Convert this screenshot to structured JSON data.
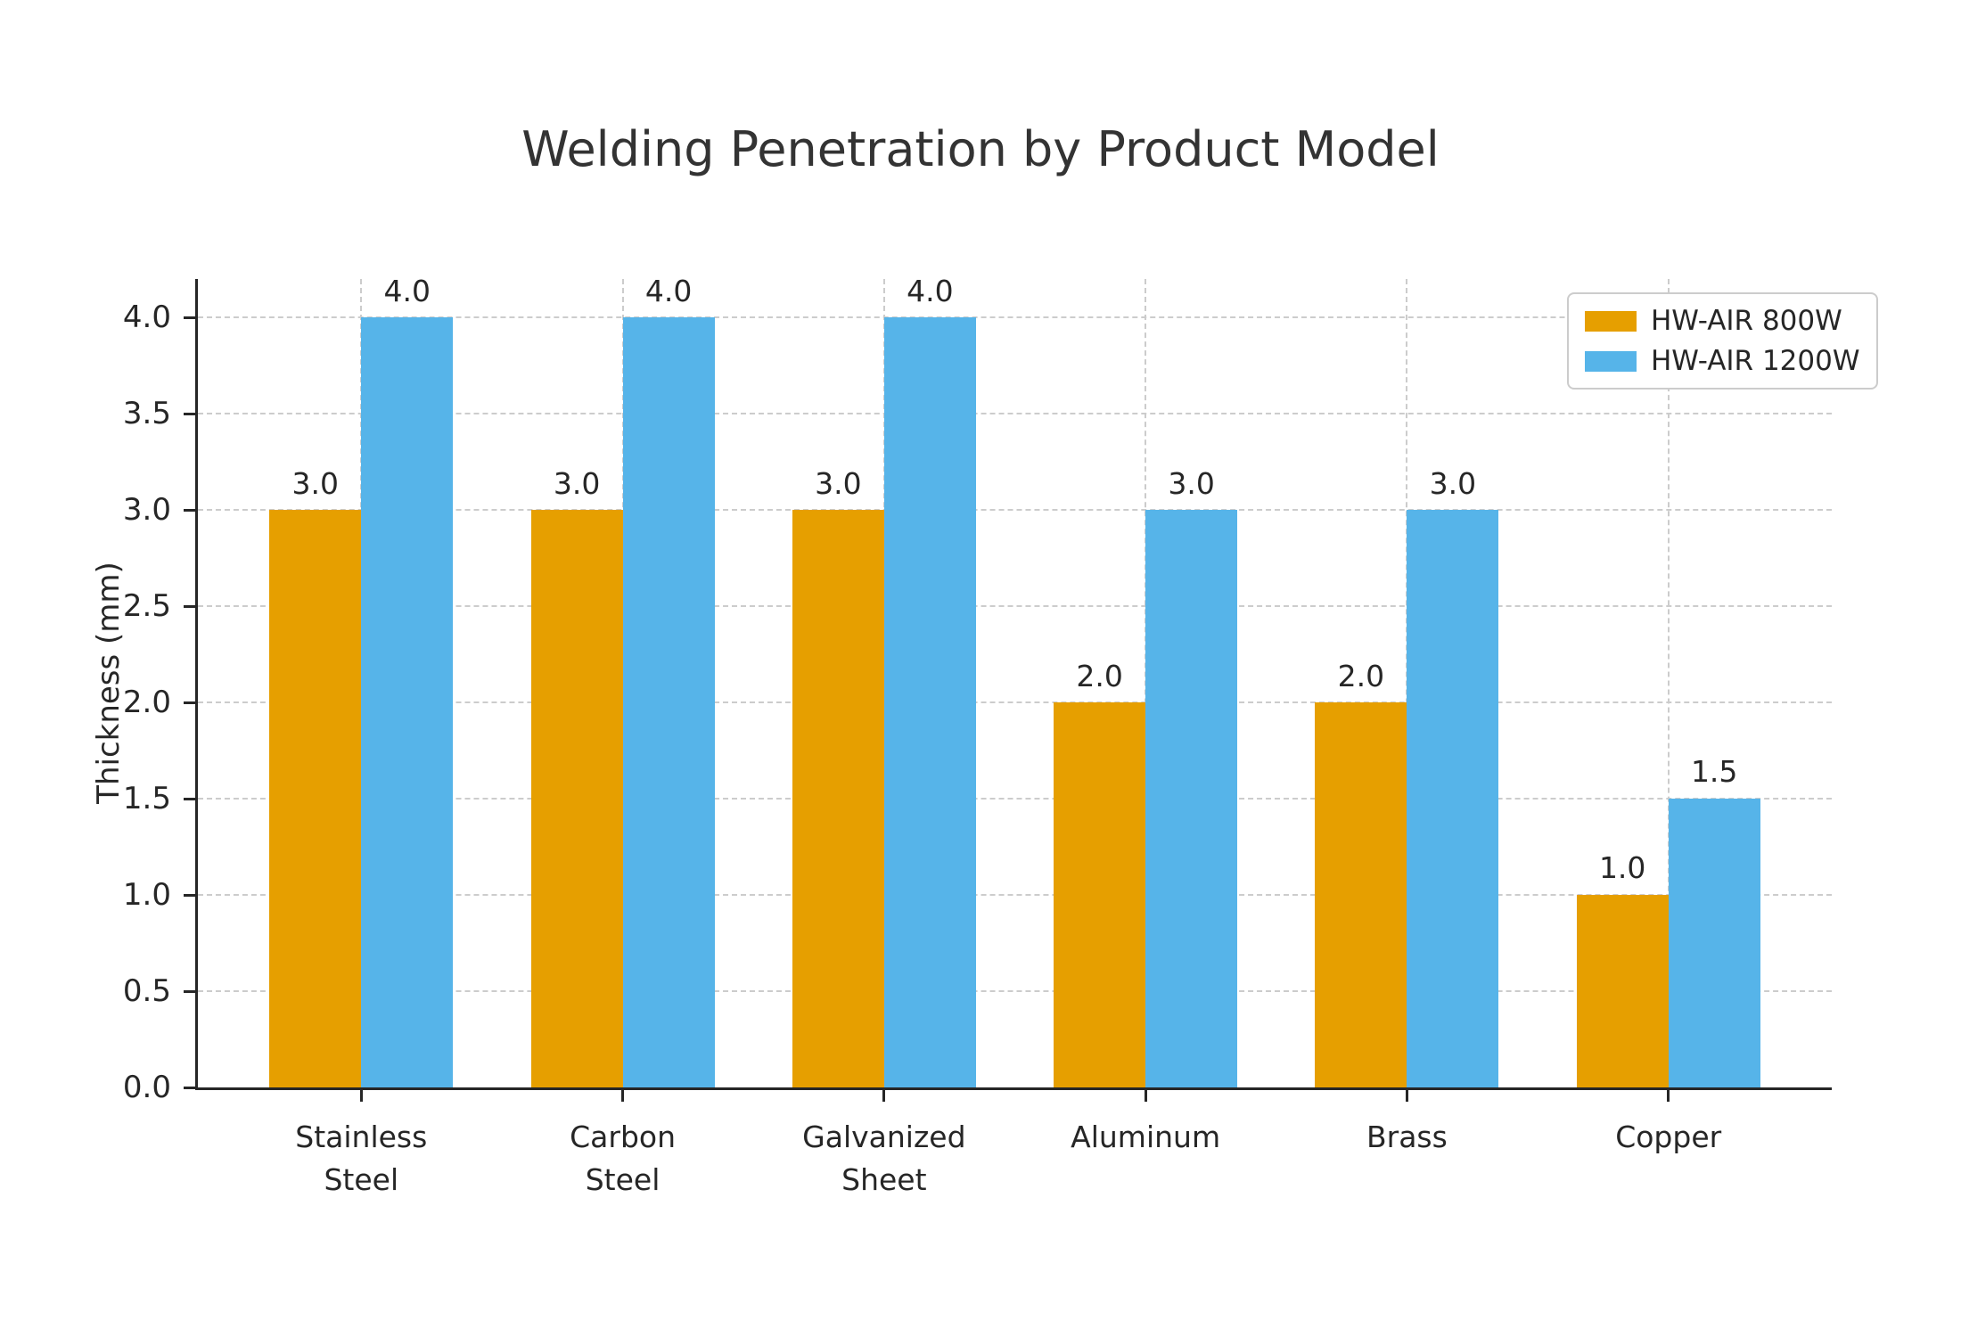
{
  "chart_data": {
    "type": "bar",
    "title": "Welding Penetration by Product Model",
    "ylabel": "Thickness (mm)",
    "xlabel": "",
    "categories": [
      "Stainless Steel",
      "Carbon Steel",
      "Galvanized Sheet",
      "Aluminum",
      "Brass",
      "Copper"
    ],
    "category_label_lines": [
      [
        "Stainless",
        "Steel"
      ],
      [
        "Carbon",
        "Steel"
      ],
      [
        "Galvanized",
        "Sheet"
      ],
      [
        "Aluminum"
      ],
      [
        "Brass"
      ],
      [
        "Copper"
      ]
    ],
    "series": [
      {
        "name": "HW-AIR 800W",
        "color": "#E69F00",
        "values": [
          3.0,
          3.0,
          3.0,
          2.0,
          2.0,
          1.0
        ]
      },
      {
        "name": "HW-AIR 1200W",
        "color": "#56B4E9",
        "values": [
          4.0,
          4.0,
          4.0,
          3.0,
          3.0,
          1.5
        ]
      }
    ],
    "bar_value_labels": [
      [
        "3.0",
        "4.0"
      ],
      [
        "3.0",
        "4.0"
      ],
      [
        "3.0",
        "4.0"
      ],
      [
        "2.0",
        "3.0"
      ],
      [
        "2.0",
        "3.0"
      ],
      [
        "1.0",
        "1.5"
      ]
    ],
    "ylim": [
      0,
      4.2
    ],
    "yticks": [
      "0.0",
      "0.5",
      "1.0",
      "1.5",
      "2.0",
      "2.5",
      "3.0",
      "3.5",
      "4.0"
    ],
    "grid": true,
    "grid_style": "dashed",
    "legend_position": "upper right",
    "colors": {
      "grid": "#cccccc",
      "axis": "#262626",
      "text": "#262626",
      "title": "#333333",
      "legend_border": "#cccccc",
      "background": "#ffffff"
    }
  }
}
